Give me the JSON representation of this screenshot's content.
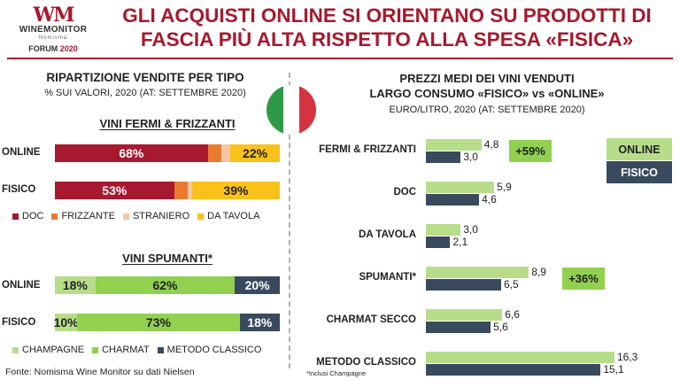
{
  "header": {
    "logo_line1": "WINEMONITOR",
    "logo_line2": "Nomisma",
    "forum_label": "FORUM",
    "forum_year": "2020",
    "title": "GLI ACQUISTI ONLINE SI ORIENTANO SU PRODOTTI DI FASCIA PIÙ ALTA RISPETTO ALLA SPESA «FISICA»"
  },
  "colors": {
    "brand": "#a6192e",
    "doc": "#a6192e",
    "frizzante": "#e87b2f",
    "straniero": "#f5c6a5",
    "da_tavola": "#f9c21a",
    "champagne": "#b7dd8b",
    "charmat": "#92d050",
    "metodo_classico": "#3a4a5e",
    "online": "#b7dd8b",
    "fisico": "#3a4a5e"
  },
  "chart_data": [
    {
      "type": "bar",
      "orientation": "horizontal-stacked",
      "title": "RIPARTIZIONE VENDITE PER TIPO",
      "subtitle": "% SUI VALORI, 2020 (AT: SETTEMBRE 2020)",
      "panel_title": "VINI FERMI & FRIZZANTI",
      "categories": [
        "ONLINE",
        "FISICO"
      ],
      "series": [
        {
          "name": "DOC",
          "color": "#a6192e",
          "values": [
            68,
            53
          ],
          "labels": [
            "68%",
            "53%"
          ]
        },
        {
          "name": "FRIZZANTE",
          "color": "#e87b2f",
          "values": [
            6,
            6
          ],
          "labels": [
            "",
            ""
          ]
        },
        {
          "name": "STRANIERO",
          "color": "#f5c6a5",
          "values": [
            4,
            2
          ],
          "labels": [
            "",
            ""
          ]
        },
        {
          "name": "DA TAVOLA",
          "color": "#f9c21a",
          "values": [
            22,
            39
          ],
          "labels": [
            "22%",
            "39%"
          ]
        }
      ],
      "legend_position": "bottom"
    },
    {
      "type": "bar",
      "orientation": "horizontal-stacked",
      "panel_title": "VINI SPUMANTI*",
      "categories": [
        "ONLINE",
        "FISICO"
      ],
      "series": [
        {
          "name": "CHAMPAGNE",
          "color": "#b7dd8b",
          "values": [
            18,
            10
          ],
          "labels": [
            "18%",
            "10%"
          ]
        },
        {
          "name": "CHARMAT",
          "color": "#92d050",
          "values": [
            62,
            73
          ],
          "labels": [
            "62%",
            "73%"
          ]
        },
        {
          "name": "METODO CLASSICO",
          "color": "#3a4a5e",
          "values": [
            20,
            18
          ],
          "labels": [
            "20%",
            "18%"
          ]
        }
      ],
      "legend_position": "bottom"
    },
    {
      "type": "bar",
      "orientation": "horizontal-grouped",
      "title": "PREZZI MEDI DEI VINI VENDUTI",
      "title_line2": "LARGO CONSUMO «FISICO» vs «ONLINE»",
      "subtitle": "EURO/LITRO, 2020 (AT: SETTEMBRE 2020)",
      "categories": [
        "FERMI & FRIZZANTI",
        "DOC",
        "DA TAVOLA",
        "SPUMANTI*",
        "CHARMAT SECCO",
        "METODO CLASSICO"
      ],
      "series": [
        {
          "name": "ONLINE",
          "color": "#b7dd8b",
          "values": [
            4.8,
            5.9,
            3.0,
            8.9,
            6.6,
            16.3
          ],
          "labels": [
            "4,8",
            "5,9",
            "3,0",
            "8,9",
            "6,6",
            "16,3"
          ]
        },
        {
          "name": "FISICO",
          "color": "#3a4a5e",
          "values": [
            3.0,
            4.6,
            2.1,
            6.5,
            5.6,
            15.1
          ],
          "labels": [
            "3,0",
            "4,6",
            "2,1",
            "6,5",
            "5,6",
            "15,1"
          ]
        }
      ],
      "annotations": [
        {
          "category": "FERMI & FRIZZANTI",
          "text": "+59%"
        },
        {
          "category": "SPUMANTI*",
          "text": "+36%"
        }
      ],
      "legend_position": "top-right",
      "xlim": [
        0,
        16.3
      ]
    }
  ],
  "footer": {
    "source": "Fonte: Nomisma Wine Monitor su dati Nielsen",
    "note": "*Inclusi Champagne"
  }
}
